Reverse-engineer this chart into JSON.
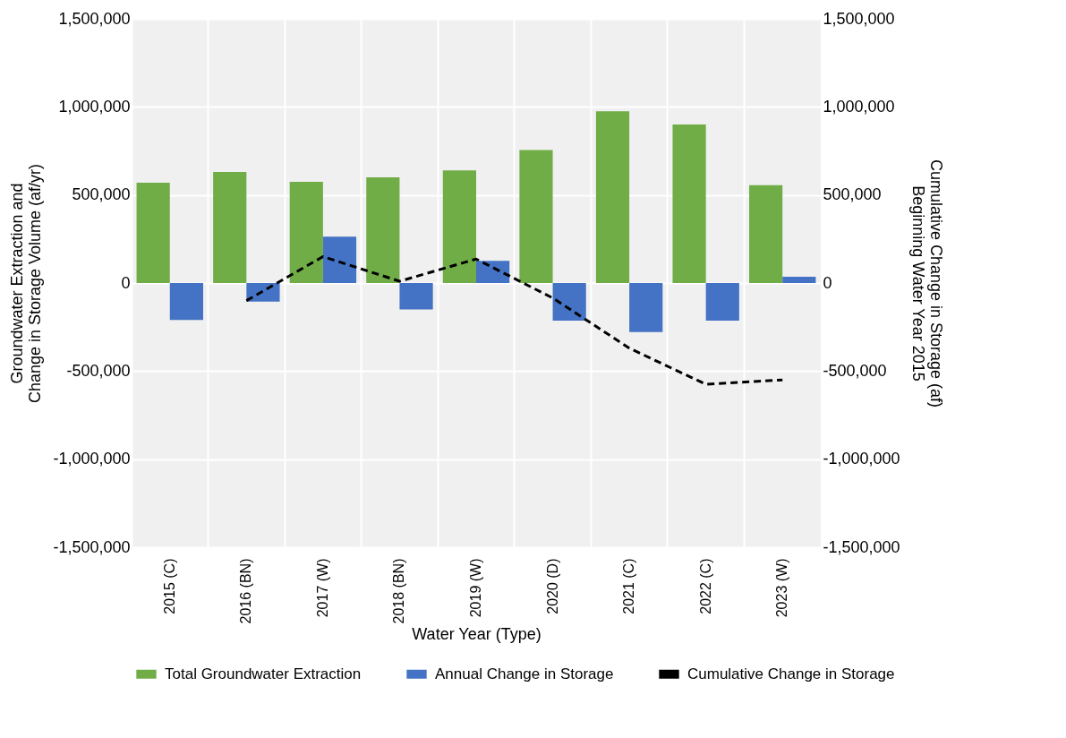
{
  "chart_data": {
    "type": "bar",
    "xlabel": "Water Year (Type)",
    "ylabel": "Groundwater Extraction and\nChange in Storage Volume (af/yr)",
    "y2label": "Cumulative Change in Storage (af)\nBeginning Water Year 2015",
    "categories": [
      "2015 (C)",
      "2016 (BN)",
      "2017 (W)",
      "2018 (BN)",
      "2019 (W)",
      "2020 (D)",
      "2021 (C)",
      "2022 (C)",
      "2023 (W)"
    ],
    "series": [
      {
        "name": "Total Groundwater Extraction",
        "color": "#70ad47",
        "values": [
          570000,
          630000,
          575000,
          600000,
          640000,
          755000,
          975000,
          900000,
          555000
        ]
      },
      {
        "name": "Annual Change in Storage",
        "color": "#4472c4",
        "values": [
          -210000,
          -105000,
          263000,
          -150000,
          126000,
          -214000,
          -279000,
          -214000,
          35000
        ]
      },
      {
        "name": "Cumulative Change in Storage",
        "type": "line",
        "axis": "y2",
        "color": "#000000",
        "line_style": "dashed",
        "values": [
          null,
          -100000,
          150000,
          10000,
          136000,
          -85000,
          -370000,
          -575000,
          -550000
        ]
      }
    ],
    "ylim": [
      -1500000,
      1500000
    ],
    "yticks": [
      {
        "value": -1500000,
        "label": "-1,500,000"
      },
      {
        "value": -1000000,
        "label": "-1,000,000"
      },
      {
        "value": -500000,
        "label": "-500,000"
      },
      0,
      {
        "value": 500000,
        "label": "500,000"
      },
      {
        "value": 1000000,
        "label": "1,000,000"
      },
      {
        "value": 1500000,
        "label": "1,500,000"
      }
    ],
    "y2lim": [
      -1500000,
      1500000
    ],
    "y2ticks": [
      {
        "value": -1500000,
        "label": "-1,500,000"
      },
      {
        "value": -1000000,
        "label": "-1,000,000"
      },
      {
        "value": -500000,
        "label": "-500,000"
      },
      0,
      {
        "value": 500000,
        "label": "500,000"
      },
      {
        "value": 1000000,
        "label": "1,000,000"
      },
      {
        "value": 1500000,
        "label": "1,500,000"
      }
    ],
    "grid": true,
    "legend": "bottom",
    "marker": "none"
  }
}
